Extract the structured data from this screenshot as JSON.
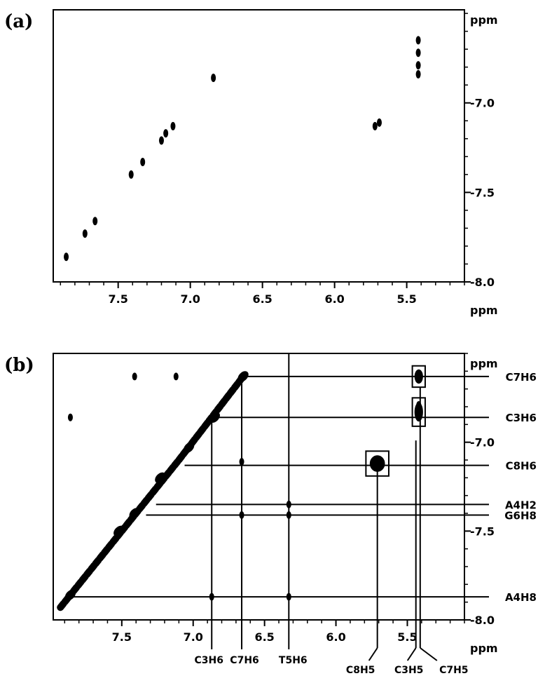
{
  "chart_data": [
    {
      "panel_label": "(a)",
      "type": "scatter",
      "x_unit": "ppm",
      "y_unit": "ppm",
      "xlim": [
        7.95,
        5.1
      ],
      "ylim": [
        6.48,
        8.0
      ],
      "x_ticks": [
        7.5,
        7.0,
        6.5,
        6.0,
        5.5
      ],
      "y_ticks": [
        7.0,
        7.5,
        8.0
      ],
      "tick_labels_x": [
        "7.5",
        "7.0",
        "6.5",
        "6.0",
        "5.5"
      ],
      "tick_labels_y": [
        "7.0",
        "7.5",
        "8.0"
      ],
      "points": [
        {
          "x": 5.42,
          "y": 6.65
        },
        {
          "x": 5.42,
          "y": 6.72
        },
        {
          "x": 5.42,
          "y": 6.79
        },
        {
          "x": 5.42,
          "y": 6.84
        },
        {
          "x": 6.84,
          "y": 6.86
        },
        {
          "x": 5.72,
          "y": 7.13
        },
        {
          "x": 5.69,
          "y": 7.11
        },
        {
          "x": 7.12,
          "y": 7.13
        },
        {
          "x": 7.17,
          "y": 7.17
        },
        {
          "x": 7.2,
          "y": 7.21
        },
        {
          "x": 7.33,
          "y": 7.33
        },
        {
          "x": 7.41,
          "y": 7.4
        },
        {
          "x": 7.66,
          "y": 7.66
        },
        {
          "x": 7.73,
          "y": 7.73
        },
        {
          "x": 7.86,
          "y": 7.86
        }
      ]
    },
    {
      "panel_label": "(b)",
      "type": "scatter",
      "x_unit": "ppm",
      "y_unit": "ppm",
      "xlim": [
        7.98,
        5.1
      ],
      "ylim": [
        6.5,
        8.0
      ],
      "x_ticks": [
        7.5,
        7.0,
        6.5,
        6.0,
        5.5
      ],
      "y_ticks": [
        7.0,
        7.5,
        8.0
      ],
      "tick_labels_x": [
        "7.5",
        "7.0",
        "6.5",
        "6.0",
        "5.5"
      ],
      "tick_labels_y": [
        "7.0",
        "7.5",
        "8.0"
      ],
      "diagonal": [
        [
          7.93,
          7.93
        ],
        [
          7.1,
          7.1
        ],
        [
          6.65,
          6.63
        ]
      ],
      "diagonal_peaks": [
        {
          "x": 6.65,
          "y": 6.63
        },
        {
          "x": 6.85,
          "y": 6.86
        },
        {
          "x": 7.03,
          "y": 7.03
        },
        {
          "x": 7.23,
          "y": 7.2
        },
        {
          "x": 7.41,
          "y": 7.4
        },
        {
          "x": 7.52,
          "y": 7.5
        },
        {
          "x": 7.86,
          "y": 7.86
        }
      ],
      "offdiagonal_peaks": [
        {
          "x": 7.41,
          "y": 6.63
        },
        {
          "x": 7.12,
          "y": 6.63
        },
        {
          "x": 7.86,
          "y": 6.86
        },
        {
          "x": 5.42,
          "y": 6.63
        },
        {
          "x": 5.42,
          "y": 6.79
        },
        {
          "x": 5.42,
          "y": 6.86
        },
        {
          "x": 5.71,
          "y": 7.11
        },
        {
          "x": 6.33,
          "y": 7.35
        },
        {
          "x": 6.33,
          "y": 7.41
        },
        {
          "x": 6.33,
          "y": 7.87
        },
        {
          "x": 6.66,
          "y": 7.11
        },
        {
          "x": 6.66,
          "y": 7.41
        },
        {
          "x": 6.87,
          "y": 7.87
        }
      ],
      "boxes": [
        {
          "x": 5.42,
          "y": 6.63,
          "w": 0.09,
          "h": 0.12
        },
        {
          "x": 5.42,
          "y": 6.83,
          "w": 0.09,
          "h": 0.16
        },
        {
          "x": 5.71,
          "y": 7.12,
          "w": 0.16,
          "h": 0.14
        }
      ],
      "h_lines": [
        {
          "label": "C7H6",
          "y": 6.63,
          "x_from": 6.66
        },
        {
          "label": "C3H6",
          "y": 6.86,
          "x_from": 6.87
        },
        {
          "label": "C8H6",
          "y": 7.13,
          "x_from": 7.06
        },
        {
          "label": "A4H2",
          "y": 7.35,
          "x_from": 7.26
        },
        {
          "label": "G6H8",
          "y": 7.41,
          "x_from": 7.33
        },
        {
          "label": "A4H8",
          "y": 7.87,
          "x_from": 7.86
        }
      ],
      "v_lines": [
        {
          "label": "C3H6",
          "x": 6.87,
          "y_from": 6.88
        },
        {
          "label": "C7H6",
          "x": 6.66,
          "y_from": 6.66
        },
        {
          "label": "T5H6",
          "x": 6.33,
          "y_from": 6.5
        },
        {
          "label": "C8H5",
          "x": 5.71,
          "y_from": 7.14
        },
        {
          "label": "C3H5",
          "x": 5.44,
          "y_from": 6.99
        },
        {
          "label": "C7H5",
          "x": 5.41,
          "y_from": 6.69
        }
      ]
    }
  ]
}
